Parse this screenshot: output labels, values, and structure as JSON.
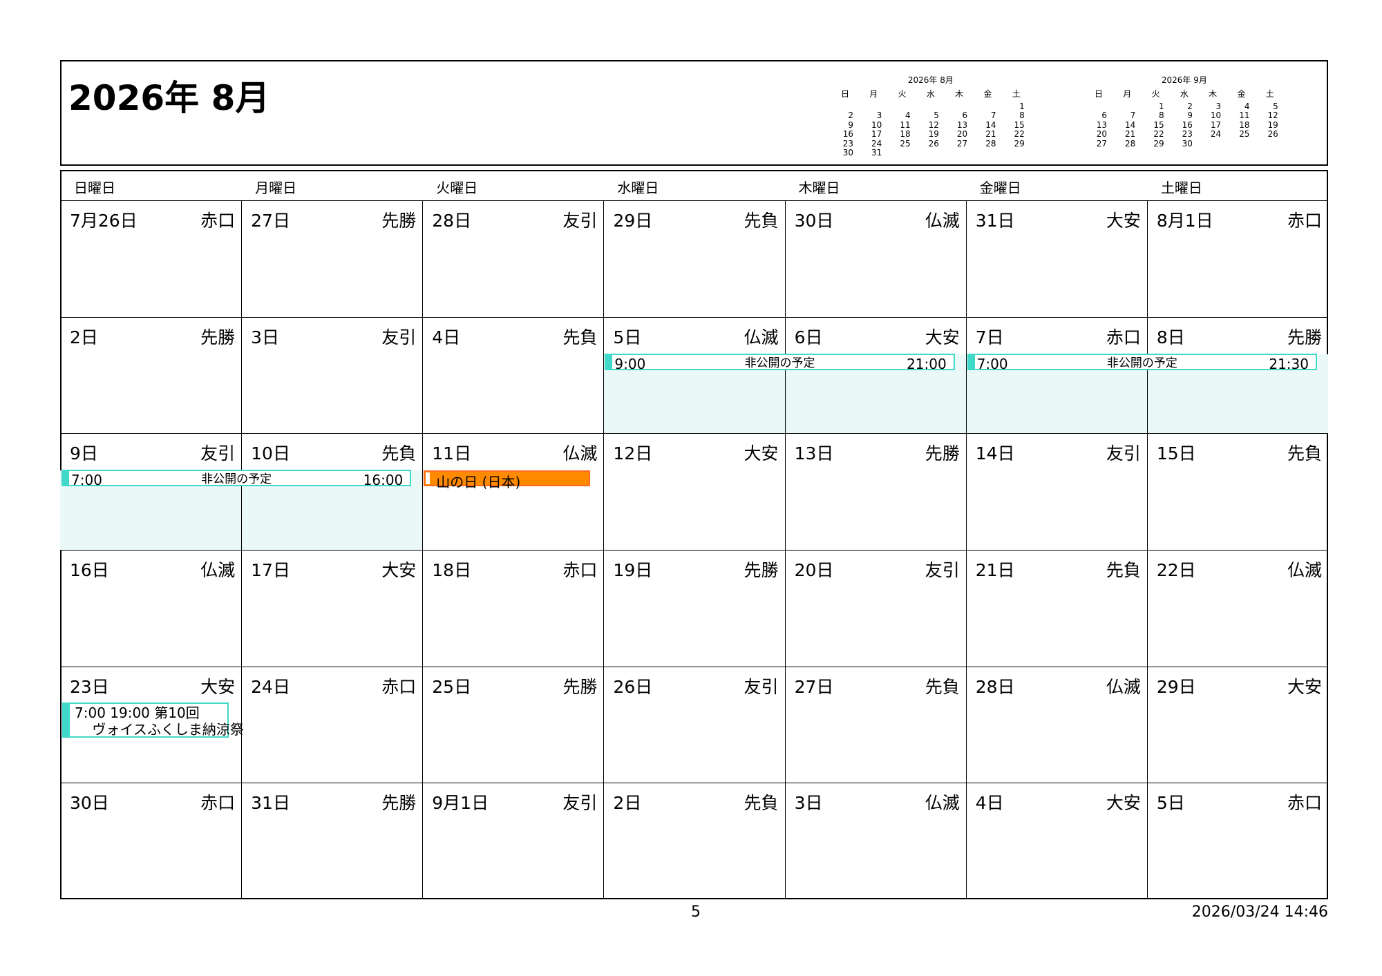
{
  "title": "2026年 8月",
  "colors": {
    "event_border": "#40d8c8",
    "event_fill": "#ebf8f8",
    "holiday": "#ff8a00"
  },
  "mini_calendars": [
    {
      "title": "2026年 8月",
      "weekdays": [
        "日",
        "月",
        "火",
        "水",
        "木",
        "金",
        "土"
      ],
      "weeks": [
        [
          "",
          "",
          "",
          "",
          "",
          "",
          "1"
        ],
        [
          "2",
          "3",
          "4",
          "5",
          "6",
          "7",
          "8"
        ],
        [
          "9",
          "10",
          "11",
          "12",
          "13",
          "14",
          "15"
        ],
        [
          "16",
          "17",
          "18",
          "19",
          "20",
          "21",
          "22"
        ],
        [
          "23",
          "24",
          "25",
          "26",
          "27",
          "28",
          "29"
        ],
        [
          "30",
          "31",
          "",
          "",
          "",
          "",
          ""
        ]
      ]
    },
    {
      "title": "2026年 9月",
      "weekdays": [
        "日",
        "月",
        "火",
        "水",
        "木",
        "金",
        "土"
      ],
      "weeks": [
        [
          "",
          "",
          "1",
          "2",
          "3",
          "4",
          "5"
        ],
        [
          "6",
          "7",
          "8",
          "9",
          "10",
          "11",
          "12"
        ],
        [
          "13",
          "14",
          "15",
          "16",
          "17",
          "18",
          "19"
        ],
        [
          "20",
          "21",
          "22",
          "23",
          "24",
          "25",
          "26"
        ],
        [
          "27",
          "28",
          "29",
          "30",
          "",
          "",
          ""
        ]
      ]
    }
  ],
  "weekday_headers": [
    "日曜日",
    "月曜日",
    "火曜日",
    "水曜日",
    "木曜日",
    "金曜日",
    "土曜日"
  ],
  "cells": [
    {
      "date": "7月26日",
      "rokuyo": "赤口"
    },
    {
      "date": "27日",
      "rokuyo": "先勝"
    },
    {
      "date": "28日",
      "rokuyo": "友引"
    },
    {
      "date": "29日",
      "rokuyo": "先負"
    },
    {
      "date": "30日",
      "rokuyo": "仏滅"
    },
    {
      "date": "31日",
      "rokuyo": "大安"
    },
    {
      "date": "8月1日",
      "rokuyo": "赤口"
    },
    {
      "date": "2日",
      "rokuyo": "先勝"
    },
    {
      "date": "3日",
      "rokuyo": "友引"
    },
    {
      "date": "4日",
      "rokuyo": "先負"
    },
    {
      "date": "5日",
      "rokuyo": "仏滅"
    },
    {
      "date": "6日",
      "rokuyo": "大安"
    },
    {
      "date": "7日",
      "rokuyo": "赤口"
    },
    {
      "date": "8日",
      "rokuyo": "先勝"
    },
    {
      "date": "9日",
      "rokuyo": "友引"
    },
    {
      "date": "10日",
      "rokuyo": "先負"
    },
    {
      "date": "11日",
      "rokuyo": "仏滅"
    },
    {
      "date": "12日",
      "rokuyo": "大安"
    },
    {
      "date": "13日",
      "rokuyo": "先勝"
    },
    {
      "date": "14日",
      "rokuyo": "友引"
    },
    {
      "date": "15日",
      "rokuyo": "先負"
    },
    {
      "date": "16日",
      "rokuyo": "仏滅"
    },
    {
      "date": "17日",
      "rokuyo": "大安"
    },
    {
      "date": "18日",
      "rokuyo": "赤口"
    },
    {
      "date": "19日",
      "rokuyo": "先勝"
    },
    {
      "date": "20日",
      "rokuyo": "友引"
    },
    {
      "date": "21日",
      "rokuyo": "先負"
    },
    {
      "date": "22日",
      "rokuyo": "仏滅"
    },
    {
      "date": "23日",
      "rokuyo": "大安"
    },
    {
      "date": "24日",
      "rokuyo": "赤口"
    },
    {
      "date": "25日",
      "rokuyo": "先勝"
    },
    {
      "date": "26日",
      "rokuyo": "友引"
    },
    {
      "date": "27日",
      "rokuyo": "先負"
    },
    {
      "date": "28日",
      "rokuyo": "仏滅"
    },
    {
      "date": "29日",
      "rokuyo": "大安"
    },
    {
      "date": "30日",
      "rokuyo": "赤口"
    },
    {
      "date": "31日",
      "rokuyo": "先勝"
    },
    {
      "date": "9月1日",
      "rokuyo": "友引"
    },
    {
      "date": "2日",
      "rokuyo": "先負"
    },
    {
      "date": "3日",
      "rokuyo": "仏滅"
    },
    {
      "date": "4日",
      "rokuyo": "大安"
    },
    {
      "date": "5日",
      "rokuyo": "赤口"
    }
  ],
  "events": [
    {
      "type": "private",
      "title": "非公開の予定",
      "start_time": "9:00",
      "end_time": "21:00",
      "start_date": "2026-08-05",
      "days": 2
    },
    {
      "type": "private",
      "title": "非公開の予定",
      "start_time": "7:00",
      "end_time": "21:30",
      "start_date": "2026-08-07",
      "days": 2
    },
    {
      "type": "private",
      "title": "非公開の予定",
      "start_time": "7:00",
      "end_time": "16:00",
      "start_date": "2026-08-09",
      "days": 2
    },
    {
      "type": "holiday",
      "title": "山の日 (日本)",
      "start_date": "2026-08-11",
      "days": 1
    },
    {
      "type": "box",
      "text": "7:00 19:00 第10回\n    ヴォイスふくしま納涼祭",
      "start_date": "2026-08-23",
      "days": 1
    }
  ],
  "footer": {
    "page": "5",
    "timestamp": "2026/03/24 14:46"
  }
}
